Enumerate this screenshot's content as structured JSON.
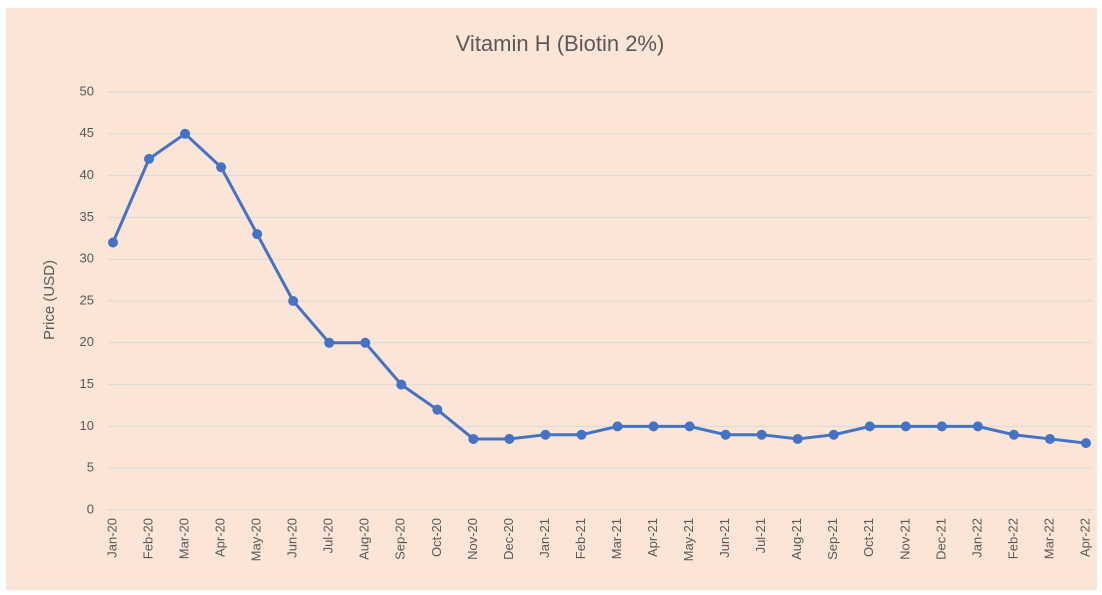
{
  "chart_data": {
    "type": "line",
    "title": "Vitamin H (Biotin 2%)",
    "y_label": "Price (USD)",
    "categories": [
      "Jan-20",
      "Feb-20",
      "Mar-20",
      "Apr-20",
      "May-20",
      "Jun-20",
      "Jul-20",
      "Aug-20",
      "Sep-20",
      "Oct-20",
      "Nov-20",
      "Dec-20",
      "Jan-21",
      "Feb-21",
      "Mar-21",
      "Apr-21",
      "May-21",
      "Jun-21",
      "Jul-21",
      "Aug-21",
      "Sep-21",
      "Oct-21",
      "Nov-21",
      "Dec-21",
      "Jan-22",
      "Feb-22",
      "Mar-22",
      "Apr-22"
    ],
    "series": [
      {
        "name": "Vitamin H (Biotin 2%)",
        "color": "#4472c4",
        "values": [
          32,
          42,
          45,
          41,
          33,
          25,
          20,
          20,
          15,
          12,
          8.5,
          8.5,
          9,
          9,
          10,
          10,
          10,
          9,
          9,
          8.5,
          9,
          10,
          10,
          10,
          10,
          9,
          8.5,
          8
        ]
      }
    ],
    "ylim": [
      0,
      50
    ],
    "yticks": [
      0,
      5,
      10,
      15,
      20,
      25,
      30,
      35,
      40,
      45,
      50
    ],
    "grid": true
  }
}
